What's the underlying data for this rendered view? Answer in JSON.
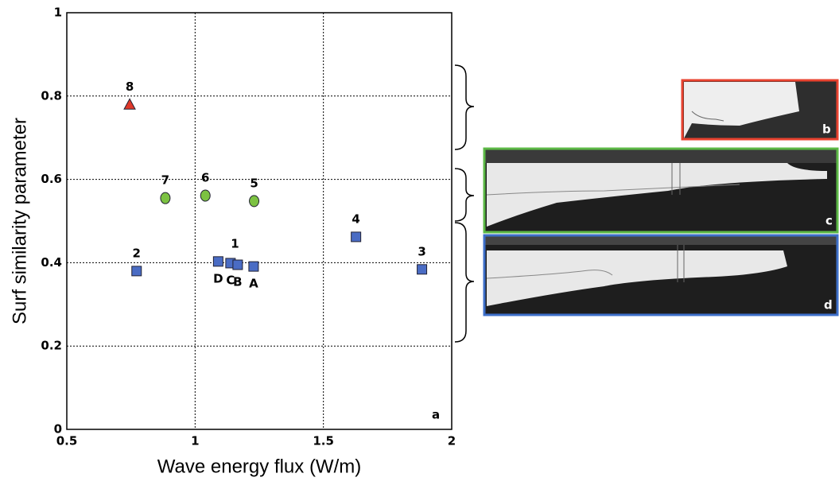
{
  "chart_data": {
    "type": "scatter",
    "panel_label": "a",
    "x_label": "Wave energy flux (W/m)",
    "y_label": "Surf similarity parameter",
    "xlim": [
      0.5,
      2
    ],
    "ylim": [
      0,
      1
    ],
    "xticks": [
      0.5,
      1,
      1.5,
      2
    ],
    "yticks": [
      0,
      0.2,
      0.4,
      0.6,
      0.8,
      1
    ],
    "grid": true,
    "series": [
      {
        "marker": "triangle",
        "color": "#e0392b",
        "x": [
          0.745
        ],
        "y": [
          0.78
        ],
        "labels": [
          "8"
        ]
      },
      {
        "marker": "circle",
        "color": "#7cc242",
        "x": [
          0.884,
          1.04,
          1.23
        ],
        "y": [
          0.555,
          0.561,
          0.548
        ],
        "labels": [
          "7",
          "6",
          "5"
        ]
      },
      {
        "marker": "square",
        "color": "#4a6cc4",
        "x": [
          0.772,
          1.627,
          1.884
        ],
        "y": [
          0.38,
          0.462,
          0.384
        ],
        "labels": [
          "2",
          "4",
          "3"
        ]
      },
      {
        "marker": "square",
        "color": "#4a6cc4",
        "name": "1",
        "x": [
          1.09,
          1.138,
          1.166,
          1.228
        ],
        "y": [
          0.403,
          0.399,
          0.395,
          0.391
        ],
        "labels": [
          "D",
          "C",
          "B",
          "A"
        ]
      }
    ],
    "photo_panels": [
      {
        "label": "b",
        "color": "#e8422f"
      },
      {
        "label": "c",
        "color": "#5cb846"
      },
      {
        "label": "d",
        "color": "#3d6fc9"
      }
    ]
  }
}
